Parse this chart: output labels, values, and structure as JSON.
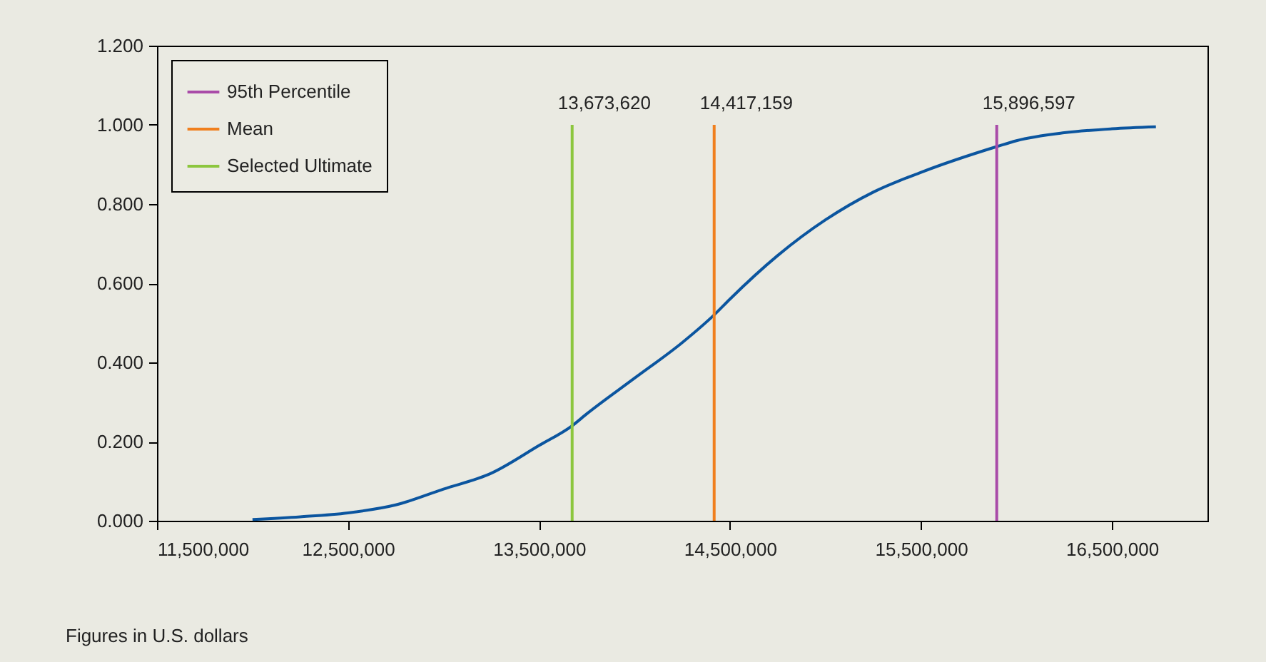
{
  "chart_data": {
    "type": "line",
    "xlim": [
      11500000,
      17000000
    ],
    "xticks": [
      {
        "value": 11500000,
        "label": "11,500,000"
      },
      {
        "value": 12500000,
        "label": "12,500,000"
      },
      {
        "value": 13500000,
        "label": "13,500,000"
      },
      {
        "value": 14500000,
        "label": "14,500,000"
      },
      {
        "value": 15500000,
        "label": "15,500,000"
      },
      {
        "value": 16500000,
        "label": "16,500,000"
      }
    ],
    "ylim": [
      0,
      1.2
    ],
    "yticks": [
      {
        "value": 0,
        "label": "0.000"
      },
      {
        "value": 0.2,
        "label": "0.200"
      },
      {
        "value": 0.4,
        "label": "0.400"
      },
      {
        "value": 0.6,
        "label": "0.600"
      },
      {
        "value": 0.8,
        "label": "0.800"
      },
      {
        "value": 1.0,
        "label": "1.000"
      },
      {
        "value": 1.2,
        "label": "1.200"
      }
    ],
    "series": [
      {
        "name": "95th Percentile",
        "color": "#a94ba8",
        "x": [
          15896597,
          15896597
        ],
        "values": [
          0,
          1
        ]
      },
      {
        "name": "Mean",
        "color": "#f07f1e",
        "x": [
          14417159,
          14417159
        ],
        "values": [
          0,
          1
        ]
      },
      {
        "name": "Selected Ultimate",
        "color": "#8cc63e",
        "x": [
          13673620,
          13673620
        ],
        "values": [
          0,
          1
        ]
      },
      {
        "color": "#0b559f",
        "x": [
          12000000,
          12250000,
          12500000,
          12750000,
          13000000,
          13250000,
          13500000,
          13673620,
          13750000,
          14000000,
          14250000,
          14417159,
          14500000,
          14750000,
          15000000,
          15250000,
          15500000,
          15896597,
          16000000,
          16250000,
          16500000,
          16730000
        ],
        "values": [
          0.003,
          0.01,
          0.02,
          0.04,
          0.08,
          0.12,
          0.19,
          0.24,
          0.27,
          0.36,
          0.45,
          0.52,
          0.56,
          0.67,
          0.76,
          0.83,
          0.88,
          0.945,
          0.96,
          0.98,
          0.99,
          0.995
        ]
      }
    ],
    "legend": "top left",
    "grid": false,
    "marker": "none",
    "annotations": [
      {
        "text": "13,673,620",
        "x": 13673620,
        "y": 1
      },
      {
        "text": "14,417,159",
        "x": 14417159,
        "y": 1
      },
      {
        "text": "15,896,597",
        "x": 15896597,
        "y": 1
      },
      "Figures in U.S. dollars"
    ]
  }
}
